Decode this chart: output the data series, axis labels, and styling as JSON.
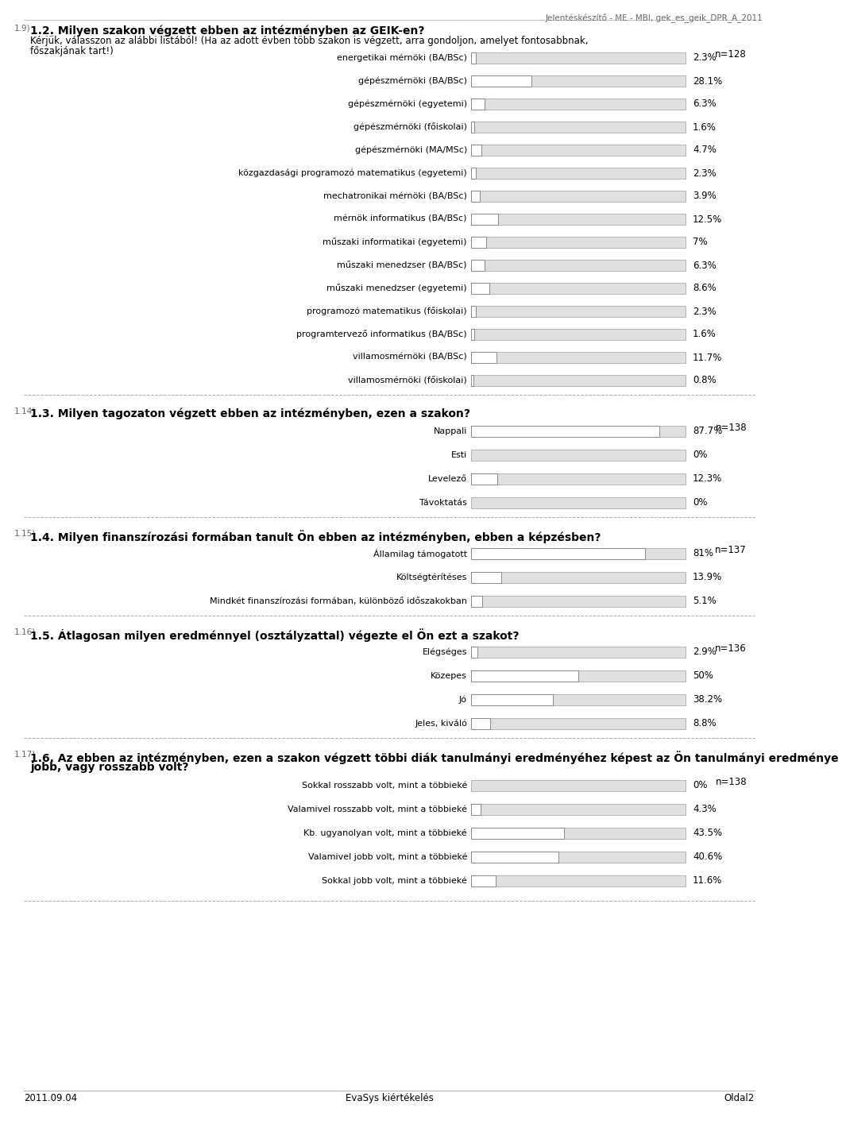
{
  "header_text": "Jelentéskészítő - ME - MBI, gek_es_geik_DPR_A_2011",
  "footer_left": "2011.09.04",
  "footer_center": "EvaSys kiértékelés",
  "footer_right": "Oldal2",
  "section1": {
    "q_num": "1.9)",
    "q_title": "1.2. Milyen szakon végzett ebben az intézményben az GEIK-en?",
    "q_subtitle_1": "Kérjük, válasszon az alábbi listából! (Ha az adott évben több szakon is végzett, arra gondoljon, amelyet fontosabbnak,",
    "q_subtitle_2": "főszakjának tart!)",
    "n": "n=128",
    "labels": [
      "energetikai mérnöki (BA/BSc)",
      "gépészmérnöki (BA/BSc)",
      "gépészmérnöki (egyetemi)",
      "gépészmérnöki (főiskolai)",
      "gépészmérnöki (MA/MSc)",
      "közgazdasági programozó matematikus (egyetemi)",
      "mechatronikai mérnöki (BA/BSc)",
      "mérnök informatikus (BA/BSc)",
      "műszaki informatikai (egyetemi)",
      "műszaki menedzser (BA/BSc)",
      "műszaki menedzser (egyetemi)",
      "programozó matematikus (főiskolai)",
      "programtervező informatikus (BA/BSc)",
      "villamosmérnöki (BA/BSc)",
      "villamosmérnöki (főiskolai)"
    ],
    "values": [
      2.3,
      28.1,
      6.3,
      1.6,
      4.7,
      2.3,
      3.9,
      12.5,
      7.0,
      6.3,
      8.6,
      2.3,
      1.6,
      11.7,
      0.8
    ],
    "value_labels": [
      "2.3%",
      "28.1%",
      "6.3%",
      "1.6%",
      "4.7%",
      "2.3%",
      "3.9%",
      "12.5%",
      "7%",
      "6.3%",
      "8.6%",
      "2.3%",
      "1.6%",
      "11.7%",
      "0.8%"
    ]
  },
  "section2": {
    "q_num": "1.14)",
    "q_title": "1.3. Milyen tagozaton végzett ebben az intézményben, ezen a szakon?",
    "n": "n=138",
    "labels": [
      "Nappali",
      "Esti",
      "Levelező",
      "Távoktatás"
    ],
    "values": [
      87.7,
      0.0,
      12.3,
      0.0
    ],
    "value_labels": [
      "87.7%",
      "0%",
      "12.3%",
      "0%"
    ]
  },
  "section3": {
    "q_num": "1.15)",
    "q_title": "1.4. Milyen finanszírozási formában tanult Ön ebben az intézményben, ebben a képzésben?",
    "n": "n=137",
    "labels": [
      "Államilag támogatott",
      "Költségtérítéses",
      "Mindkét finanszírozási formában, különböző időszakokban"
    ],
    "values": [
      81.0,
      13.9,
      5.1
    ],
    "value_labels": [
      "81%",
      "13.9%",
      "5.1%"
    ]
  },
  "section4": {
    "q_num": "1.16)",
    "q_title": "1.5. Átlagosan milyen eredménnyel (osztályzattal) végezte el Ön ezt a szakot?",
    "n": "n=136",
    "labels": [
      "Elégséges",
      "Közepes",
      "Jó",
      "Jeles, kiváló"
    ],
    "values": [
      2.9,
      50.0,
      38.2,
      8.8
    ],
    "value_labels": [
      "2.9%",
      "50%",
      "38.2%",
      "8.8%"
    ]
  },
  "section5": {
    "q_num": "1.17)",
    "q_title_1": "1.6. Az ebben az intézményben, ezen a szakon végzett többi diák tanulmányi eredményéhez képest az Ön tanulmányi eredménye",
    "q_title_2": "jobb, vagy rosszabb volt?",
    "n": "n=138",
    "labels": [
      "Sokkal rosszabb volt, mint a többieké",
      "Valamivel rosszabb volt, mint a többieké",
      "Kb. ugyanolyan volt, mint a többieké",
      "Valamivel jobb volt, mint a többieké",
      "Sokkal jobb volt, mint a többieké"
    ],
    "values": [
      0.0,
      4.3,
      43.5,
      40.6,
      11.6
    ],
    "value_labels": [
      "0%",
      "4.3%",
      "43.5%",
      "40.6%",
      "11.6%"
    ]
  },
  "bg_bar_color": "#e0e0e0",
  "fg_bar_color": "#ffffff",
  "bar_border_color": "#888888",
  "background_color": "#ffffff",
  "text_color": "#000000",
  "qnum_color": "#666666",
  "header_color": "#666666",
  "sep_color": "#aaaaaa",
  "label_fontsize": 8.0,
  "value_fontsize": 8.5,
  "title_fontsize": 10.0,
  "qnum_fontsize": 7.5,
  "header_fontsize": 7.5,
  "footer_fontsize": 8.5
}
